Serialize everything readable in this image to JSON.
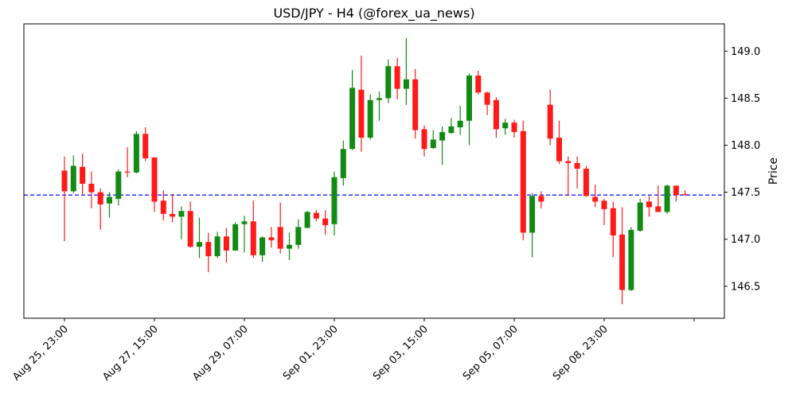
{
  "chart_data": {
    "type": "candlestick",
    "title": "USD/JPY - H4 (@forex_ua_news)",
    "xlabel": "",
    "ylabel": "Price",
    "y_axis_side": "right",
    "ylim": [
      146.16,
      149.29
    ],
    "yticks": [
      146.5,
      147.0,
      147.5,
      148.0,
      148.5,
      149.0
    ],
    "ytick_labels": [
      "146.5",
      "147.0",
      "147.5",
      "148.0",
      "148.5",
      "149.0"
    ],
    "xticks": [
      0,
      10,
      20,
      30,
      40,
      50,
      60,
      70
    ],
    "xtick_labels": [
      "Aug 25, 23:00",
      "Aug 27, 15:00",
      "Aug 29, 07:00",
      "Sep 01, 23:00",
      "Sep 03, 15:00",
      "Sep 05, 07:00",
      "Sep 08, 23:00",
      ""
    ],
    "grid": false,
    "colors": {
      "up": "#138a13",
      "down": "#ff1a1a",
      "current_price_line": "#0000ff"
    },
    "current_price": 147.47,
    "ohlc": [
      [
        147.73,
        147.88,
        146.98,
        147.51
      ],
      [
        147.51,
        147.89,
        147.49,
        147.78
      ],
      [
        147.77,
        147.91,
        147.47,
        147.59
      ],
      [
        147.59,
        147.72,
        147.33,
        147.5
      ],
      [
        147.5,
        147.54,
        147.1,
        147.37
      ],
      [
        147.38,
        147.5,
        147.23,
        147.45
      ],
      [
        147.43,
        147.74,
        147.36,
        147.72
      ],
      [
        147.72,
        147.98,
        147.66,
        147.71
      ],
      [
        147.71,
        148.15,
        147.7,
        148.12
      ],
      [
        148.12,
        148.19,
        147.83,
        147.86
      ],
      [
        147.87,
        147.87,
        147.29,
        147.4
      ],
      [
        147.41,
        147.52,
        147.2,
        147.27
      ],
      [
        147.27,
        147.48,
        147.18,
        147.24
      ],
      [
        147.24,
        147.35,
        147.0,
        147.3
      ],
      [
        147.3,
        147.4,
        146.91,
        146.92
      ],
      [
        146.92,
        147.23,
        146.8,
        146.97
      ],
      [
        146.97,
        147.07,
        146.65,
        146.82
      ],
      [
        146.82,
        147.08,
        146.8,
        147.03
      ],
      [
        147.03,
        147.12,
        146.75,
        146.88
      ],
      [
        146.88,
        147.18,
        146.88,
        147.16
      ],
      [
        147.16,
        147.25,
        146.86,
        147.19
      ],
      [
        147.19,
        147.41,
        146.8,
        146.83
      ],
      [
        146.83,
        147.03,
        146.76,
        147.02
      ],
      [
        147.02,
        147.13,
        146.91,
        146.99
      ],
      [
        147.13,
        147.39,
        146.85,
        146.9
      ],
      [
        146.9,
        147.07,
        146.78,
        146.94
      ],
      [
        146.94,
        147.21,
        146.9,
        147.13
      ],
      [
        147.12,
        147.3,
        147.12,
        147.29
      ],
      [
        147.28,
        147.31,
        147.19,
        147.22
      ],
      [
        147.22,
        147.31,
        147.05,
        147.15
      ],
      [
        147.16,
        147.72,
        147.04,
        147.66
      ],
      [
        147.65,
        148.05,
        147.57,
        147.96
      ],
      [
        147.96,
        148.8,
        147.95,
        148.61
      ],
      [
        148.59,
        148.95,
        147.93,
        148.08
      ],
      [
        148.08,
        148.54,
        148.06,
        148.48
      ],
      [
        148.48,
        148.57,
        148.26,
        148.5
      ],
      [
        148.5,
        148.91,
        148.45,
        148.84
      ],
      [
        148.84,
        148.93,
        148.49,
        148.6
      ],
      [
        148.6,
        149.14,
        148.43,
        148.7
      ],
      [
        148.7,
        148.81,
        148.07,
        148.16
      ],
      [
        148.17,
        148.21,
        147.88,
        147.96
      ],
      [
        147.97,
        148.16,
        147.96,
        148.06
      ],
      [
        148.05,
        148.2,
        147.79,
        148.14
      ],
      [
        148.13,
        148.29,
        148.12,
        148.2
      ],
      [
        148.19,
        148.42,
        148.11,
        148.26
      ],
      [
        148.26,
        148.76,
        148.0,
        148.74
      ],
      [
        148.74,
        148.79,
        148.54,
        148.56
      ],
      [
        148.56,
        148.57,
        148.32,
        148.43
      ],
      [
        148.48,
        148.51,
        148.08,
        148.17
      ],
      [
        148.18,
        148.28,
        148.11,
        148.24
      ],
      [
        148.24,
        148.27,
        148.08,
        148.14
      ],
      [
        148.15,
        148.26,
        146.99,
        147.07
      ],
      [
        147.07,
        147.49,
        146.81,
        147.46
      ],
      [
        147.46,
        147.51,
        147.33,
        147.4
      ],
      [
        148.43,
        148.59,
        148.0,
        148.07
      ],
      [
        148.08,
        148.26,
        147.8,
        147.83
      ],
      [
        147.83,
        147.88,
        147.46,
        147.81
      ],
      [
        147.81,
        147.88,
        147.54,
        147.75
      ],
      [
        147.75,
        147.78,
        147.45,
        147.46
      ],
      [
        147.45,
        147.58,
        147.34,
        147.4
      ],
      [
        147.41,
        147.43,
        147.15,
        147.32
      ],
      [
        147.33,
        147.4,
        146.81,
        147.04
      ],
      [
        147.05,
        147.34,
        146.31,
        146.46
      ],
      [
        146.46,
        147.13,
        146.45,
        147.1
      ],
      [
        147.09,
        147.43,
        147.08,
        147.39
      ],
      [
        147.4,
        147.46,
        147.24,
        147.34
      ],
      [
        147.35,
        147.57,
        147.29,
        147.29
      ],
      [
        147.29,
        147.58,
        147.27,
        147.57
      ],
      [
        147.57,
        147.57,
        147.4,
        147.47
      ],
      [
        147.48,
        147.52,
        147.46,
        147.47
      ]
    ]
  }
}
